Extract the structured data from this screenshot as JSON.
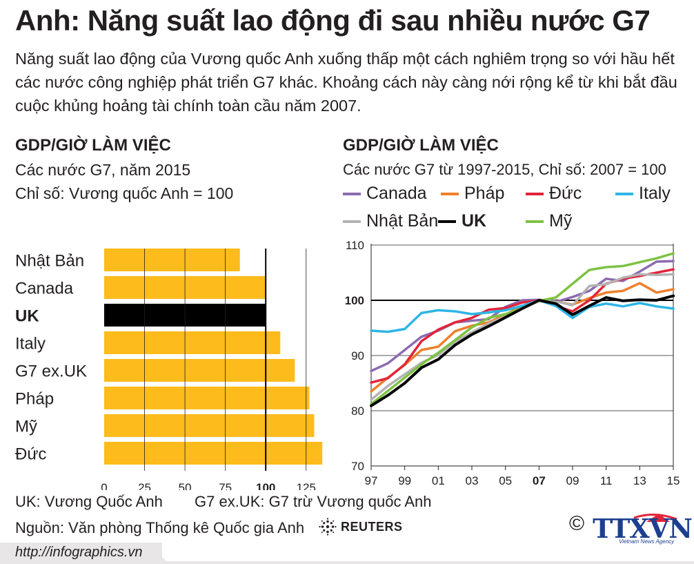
{
  "title": "Anh: Năng suất lao động đi sau nhiều nước G7",
  "subtitle": "Năng suất lao động của Vương quốc Anh xuống thấp một cách nghiêm trọng so với hầu hết các nước công nghiệp phát triển G7 khác. Khoảng cách này càng nới rộng kể từ khi bắt đầu cuộc khủng hoảng tài chính toàn cầu năm 2007.",
  "left_panel": {
    "heading": "GDP/GIỜ LÀM VIỆC",
    "line1": "Các nước G7, năm 2015",
    "line2": "Chỉ số: Vương quốc Anh = 100"
  },
  "right_panel": {
    "heading": "GDP/GIỜ LÀM VIỆC",
    "line1": "Các nước G7 từ 1997-2015, Chỉ số: 2007 = 100"
  },
  "colors": {
    "bar": "#fdbb1c",
    "bar_highlight": "#000000",
    "canada": "#8c6bb1",
    "phap": "#f07f2b",
    "duc": "#e2243a",
    "italy": "#2eb5e5",
    "nhat_ban": "#b3b3b3",
    "uk": "#000000",
    "my": "#7dc242"
  },
  "chart_data": [
    {
      "type": "bar",
      "orientation": "horizontal",
      "categories": [
        "Nhật Bản",
        "Canada",
        "UK",
        "Italy",
        "G7 ex.UK",
        "Pháp",
        "Mỹ",
        "Đức"
      ],
      "values": [
        84,
        100,
        100,
        109,
        118,
        127,
        130,
        135
      ],
      "highlight": "UK",
      "xlim": [
        0,
        135
      ],
      "xticks": [
        "0",
        "25",
        "50",
        "75",
        "100",
        "125"
      ],
      "reference_line": 100
    },
    {
      "type": "line",
      "x": [
        1997,
        1998,
        1999,
        2000,
        2001,
        2002,
        2003,
        2004,
        2005,
        2006,
        2007,
        2008,
        2009,
        2010,
        2011,
        2012,
        2013,
        2014,
        2015
      ],
      "xticks": [
        "97",
        "99",
        "01",
        "03",
        "05",
        "07",
        "09",
        "11",
        "13",
        "15"
      ],
      "ylim": [
        70,
        110
      ],
      "yticks": [
        "70",
        "80",
        "90",
        "100",
        "110"
      ],
      "reference_line": 100,
      "legend_position": "top",
      "series": [
        {
          "name": "Canada",
          "color_key": "canada",
          "values": [
            87.2,
            88.6,
            91.0,
            93.4,
            94.5,
            96.0,
            96.3,
            96.6,
            98.8,
            100.0,
            100.1,
            99.7,
            100.6,
            101.7,
            103.9,
            103.5,
            105.2,
            107.0,
            107.1
          ]
        },
        {
          "name": "Pháp",
          "color_key": "phap",
          "values": [
            83.5,
            86.0,
            88.3,
            91.0,
            91.6,
            94.4,
            95.4,
            96.0,
            97.4,
            99.0,
            100.0,
            99.8,
            99.2,
            100.4,
            101.4,
            101.7,
            103.1,
            101.4,
            102.0
          ]
        },
        {
          "name": "Đức",
          "color_key": "duc",
          "values": [
            85.1,
            85.9,
            88.4,
            92.6,
            94.7,
            96.0,
            96.8,
            98.3,
            98.6,
            99.6,
            100.0,
            99.0,
            98.0,
            100.0,
            103.0,
            103.9,
            104.4,
            105.0,
            105.6
          ]
        },
        {
          "name": "Italy",
          "color_key": "italy",
          "values": [
            94.5,
            94.3,
            94.8,
            97.7,
            98.2,
            98.0,
            97.5,
            97.8,
            98.2,
            99.0,
            100.0,
            99.0,
            96.8,
            98.8,
            99.4,
            98.9,
            99.5,
            98.9,
            98.5
          ]
        },
        {
          "name": "Nhật Bản",
          "color_key": "nhat_ban",
          "values": [
            82.0,
            84.5,
            86.6,
            88.7,
            90.1,
            92.5,
            94.2,
            95.8,
            97.1,
            98.5,
            100.0,
            99.8,
            99.1,
            102.6,
            102.9,
            104.1,
            104.7,
            104.6,
            104.7
          ]
        },
        {
          "name": "UK",
          "color_key": "uk",
          "values": [
            80.9,
            82.8,
            85.0,
            87.8,
            89.3,
            91.9,
            93.8,
            95.3,
            96.9,
            98.5,
            100.0,
            99.4,
            97.4,
            99.0,
            100.5,
            99.9,
            100.1,
            100.0,
            100.8
          ]
        },
        {
          "name": "Mỹ",
          "color_key": "my",
          "values": [
            81.2,
            83.6,
            86.0,
            88.4,
            90.5,
            92.8,
            95.1,
            96.8,
            97.5,
            98.5,
            99.9,
            100.5,
            103.0,
            105.5,
            106.0,
            106.2,
            106.9,
            107.6,
            108.5
          ]
        }
      ]
    }
  ],
  "legend": {
    "canada": "Canada",
    "phap": "Pháp",
    "duc": "Đức",
    "italy": "Italy",
    "nhat_ban": "Nhật Bản",
    "uk": "UK",
    "my": "Mỹ"
  },
  "notes": {
    "uk": "UK: Vương Quốc Anh",
    "g7": "G7 ex.UK: G7 trừ Vương quốc Anh",
    "source": "Nguồn: Văn phòng Thống kê Quốc gia Anh"
  },
  "logos": {
    "reuters": "REUTERS",
    "copyright": "©",
    "ttxvn": "TTXVN",
    "ttxvn_sub": "Vietnam News Agency"
  },
  "footer": {
    "url": "http://infographics.vn"
  }
}
